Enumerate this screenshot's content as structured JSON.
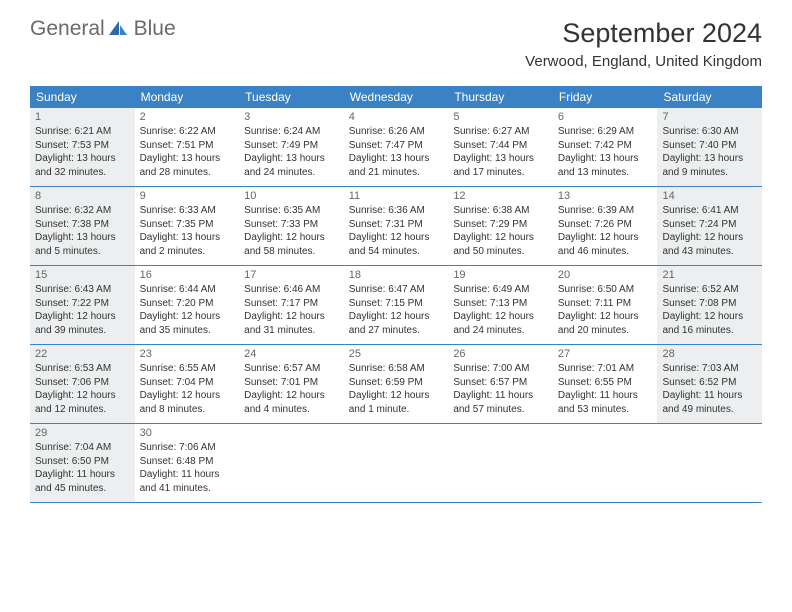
{
  "logo": {
    "text_gray": "General",
    "text_blue": "Blue"
  },
  "title": "September 2024",
  "location": "Verwood, England, United Kingdom",
  "colors": {
    "header_bg": "#3b82c4",
    "header_text": "#ffffff",
    "shaded_bg": "#eceeef",
    "border": "#3b82c4",
    "logo_gray": "#6a6a6a",
    "logo_blue": "#3b82c4",
    "body_text": "#333333",
    "daynum_text": "#666666"
  },
  "day_names": [
    "Sunday",
    "Monday",
    "Tuesday",
    "Wednesday",
    "Thursday",
    "Friday",
    "Saturday"
  ],
  "weeks": [
    [
      {
        "n": "1",
        "shaded": true,
        "sr": "Sunrise: 6:21 AM",
        "ss": "Sunset: 7:53 PM",
        "dl1": "Daylight: 13 hours",
        "dl2": "and 32 minutes."
      },
      {
        "n": "2",
        "shaded": false,
        "sr": "Sunrise: 6:22 AM",
        "ss": "Sunset: 7:51 PM",
        "dl1": "Daylight: 13 hours",
        "dl2": "and 28 minutes."
      },
      {
        "n": "3",
        "shaded": false,
        "sr": "Sunrise: 6:24 AM",
        "ss": "Sunset: 7:49 PM",
        "dl1": "Daylight: 13 hours",
        "dl2": "and 24 minutes."
      },
      {
        "n": "4",
        "shaded": false,
        "sr": "Sunrise: 6:26 AM",
        "ss": "Sunset: 7:47 PM",
        "dl1": "Daylight: 13 hours",
        "dl2": "and 21 minutes."
      },
      {
        "n": "5",
        "shaded": false,
        "sr": "Sunrise: 6:27 AM",
        "ss": "Sunset: 7:44 PM",
        "dl1": "Daylight: 13 hours",
        "dl2": "and 17 minutes."
      },
      {
        "n": "6",
        "shaded": false,
        "sr": "Sunrise: 6:29 AM",
        "ss": "Sunset: 7:42 PM",
        "dl1": "Daylight: 13 hours",
        "dl2": "and 13 minutes."
      },
      {
        "n": "7",
        "shaded": true,
        "sr": "Sunrise: 6:30 AM",
        "ss": "Sunset: 7:40 PM",
        "dl1": "Daylight: 13 hours",
        "dl2": "and 9 minutes."
      }
    ],
    [
      {
        "n": "8",
        "shaded": true,
        "sr": "Sunrise: 6:32 AM",
        "ss": "Sunset: 7:38 PM",
        "dl1": "Daylight: 13 hours",
        "dl2": "and 5 minutes."
      },
      {
        "n": "9",
        "shaded": false,
        "sr": "Sunrise: 6:33 AM",
        "ss": "Sunset: 7:35 PM",
        "dl1": "Daylight: 13 hours",
        "dl2": "and 2 minutes."
      },
      {
        "n": "10",
        "shaded": false,
        "sr": "Sunrise: 6:35 AM",
        "ss": "Sunset: 7:33 PM",
        "dl1": "Daylight: 12 hours",
        "dl2": "and 58 minutes."
      },
      {
        "n": "11",
        "shaded": false,
        "sr": "Sunrise: 6:36 AM",
        "ss": "Sunset: 7:31 PM",
        "dl1": "Daylight: 12 hours",
        "dl2": "and 54 minutes."
      },
      {
        "n": "12",
        "shaded": false,
        "sr": "Sunrise: 6:38 AM",
        "ss": "Sunset: 7:29 PM",
        "dl1": "Daylight: 12 hours",
        "dl2": "and 50 minutes."
      },
      {
        "n": "13",
        "shaded": false,
        "sr": "Sunrise: 6:39 AM",
        "ss": "Sunset: 7:26 PM",
        "dl1": "Daylight: 12 hours",
        "dl2": "and 46 minutes."
      },
      {
        "n": "14",
        "shaded": true,
        "sr": "Sunrise: 6:41 AM",
        "ss": "Sunset: 7:24 PM",
        "dl1": "Daylight: 12 hours",
        "dl2": "and 43 minutes."
      }
    ],
    [
      {
        "n": "15",
        "shaded": true,
        "sr": "Sunrise: 6:43 AM",
        "ss": "Sunset: 7:22 PM",
        "dl1": "Daylight: 12 hours",
        "dl2": "and 39 minutes."
      },
      {
        "n": "16",
        "shaded": false,
        "sr": "Sunrise: 6:44 AM",
        "ss": "Sunset: 7:20 PM",
        "dl1": "Daylight: 12 hours",
        "dl2": "and 35 minutes."
      },
      {
        "n": "17",
        "shaded": false,
        "sr": "Sunrise: 6:46 AM",
        "ss": "Sunset: 7:17 PM",
        "dl1": "Daylight: 12 hours",
        "dl2": "and 31 minutes."
      },
      {
        "n": "18",
        "shaded": false,
        "sr": "Sunrise: 6:47 AM",
        "ss": "Sunset: 7:15 PM",
        "dl1": "Daylight: 12 hours",
        "dl2": "and 27 minutes."
      },
      {
        "n": "19",
        "shaded": false,
        "sr": "Sunrise: 6:49 AM",
        "ss": "Sunset: 7:13 PM",
        "dl1": "Daylight: 12 hours",
        "dl2": "and 24 minutes."
      },
      {
        "n": "20",
        "shaded": false,
        "sr": "Sunrise: 6:50 AM",
        "ss": "Sunset: 7:11 PM",
        "dl1": "Daylight: 12 hours",
        "dl2": "and 20 minutes."
      },
      {
        "n": "21",
        "shaded": true,
        "sr": "Sunrise: 6:52 AM",
        "ss": "Sunset: 7:08 PM",
        "dl1": "Daylight: 12 hours",
        "dl2": "and 16 minutes."
      }
    ],
    [
      {
        "n": "22",
        "shaded": true,
        "sr": "Sunrise: 6:53 AM",
        "ss": "Sunset: 7:06 PM",
        "dl1": "Daylight: 12 hours",
        "dl2": "and 12 minutes."
      },
      {
        "n": "23",
        "shaded": false,
        "sr": "Sunrise: 6:55 AM",
        "ss": "Sunset: 7:04 PM",
        "dl1": "Daylight: 12 hours",
        "dl2": "and 8 minutes."
      },
      {
        "n": "24",
        "shaded": false,
        "sr": "Sunrise: 6:57 AM",
        "ss": "Sunset: 7:01 PM",
        "dl1": "Daylight: 12 hours",
        "dl2": "and 4 minutes."
      },
      {
        "n": "25",
        "shaded": false,
        "sr": "Sunrise: 6:58 AM",
        "ss": "Sunset: 6:59 PM",
        "dl1": "Daylight: 12 hours",
        "dl2": "and 1 minute."
      },
      {
        "n": "26",
        "shaded": false,
        "sr": "Sunrise: 7:00 AM",
        "ss": "Sunset: 6:57 PM",
        "dl1": "Daylight: 11 hours",
        "dl2": "and 57 minutes."
      },
      {
        "n": "27",
        "shaded": false,
        "sr": "Sunrise: 7:01 AM",
        "ss": "Sunset: 6:55 PM",
        "dl1": "Daylight: 11 hours",
        "dl2": "and 53 minutes."
      },
      {
        "n": "28",
        "shaded": true,
        "sr": "Sunrise: 7:03 AM",
        "ss": "Sunset: 6:52 PM",
        "dl1": "Daylight: 11 hours",
        "dl2": "and 49 minutes."
      }
    ],
    [
      {
        "n": "29",
        "shaded": true,
        "sr": "Sunrise: 7:04 AM",
        "ss": "Sunset: 6:50 PM",
        "dl1": "Daylight: 11 hours",
        "dl2": "and 45 minutes."
      },
      {
        "n": "30",
        "shaded": false,
        "sr": "Sunrise: 7:06 AM",
        "ss": "Sunset: 6:48 PM",
        "dl1": "Daylight: 11 hours",
        "dl2": "and 41 minutes."
      },
      {
        "empty": true
      },
      {
        "empty": true
      },
      {
        "empty": true
      },
      {
        "empty": true
      },
      {
        "empty": true
      }
    ]
  ]
}
